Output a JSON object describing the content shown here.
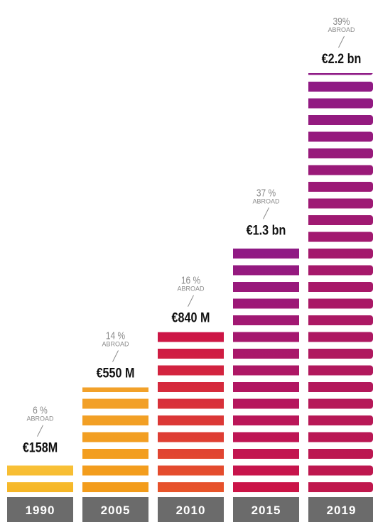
{
  "chart_data": {
    "type": "bar",
    "categories": [
      "1990",
      "2005",
      "2010",
      "2015",
      "2019"
    ],
    "values": [
      158,
      550,
      840,
      1300,
      2200
    ],
    "value_labels": [
      "€158M",
      "€550 M",
      "€840 M",
      "€1.3 bn",
      "€2.2 bn"
    ],
    "abroad_share": [
      6,
      14,
      16,
      37,
      39
    ],
    "abroad_share_labels": [
      "6 %",
      "14 %",
      "16 %",
      "37 %",
      "39%"
    ],
    "abroad_label": "ABROAD",
    "colors": [
      [
        "#f6b626",
        "#f8c23a"
      ],
      [
        "#f39c1a",
        "#f2a12a"
      ],
      [
        "#e8542a",
        "#cc1446"
      ],
      [
        "#cc1446",
        "#8e1a86"
      ],
      [
        "#c0174c",
        "#8e1a86"
      ]
    ],
    "category_color": "#6b6b6b"
  }
}
